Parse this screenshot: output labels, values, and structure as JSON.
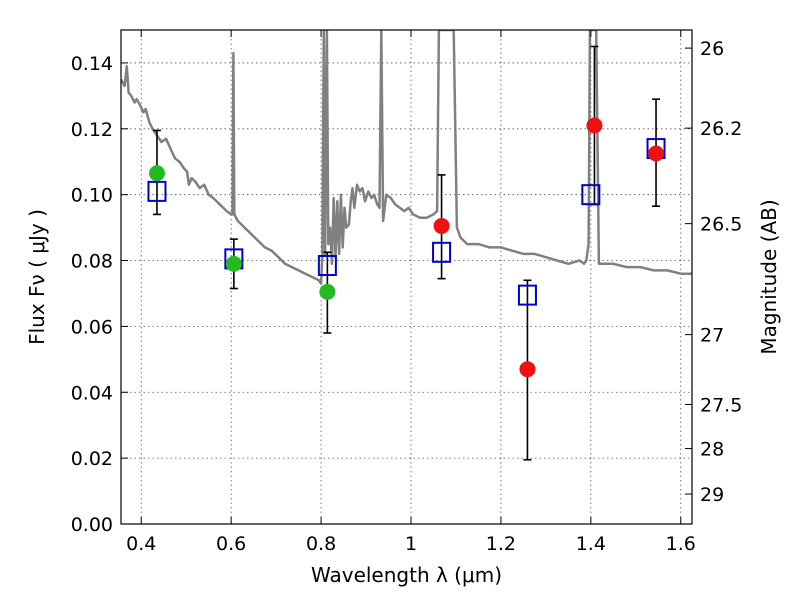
{
  "chart_data": {
    "type": "scatter",
    "xlabel": "Wavelength  λ (μm)",
    "ylabel": "Flux  Fν  ( μJy )",
    "y2label": "Magnitude (AB)",
    "xlim": [
      0.355,
      1.625
    ],
    "ylim": [
      0.0,
      0.15
    ],
    "grid": true,
    "colors": {
      "model": "#808080",
      "green": "#22bb22",
      "red": "#ee1111",
      "square": "#0000cc",
      "errorbar": "#000000"
    },
    "x_ticks": [
      {
        "value": 0.4,
        "label": "0.4"
      },
      {
        "value": 0.6,
        "label": "0.6"
      },
      {
        "value": 0.8,
        "label": "0.8"
      },
      {
        "value": 1.0,
        "label": "1"
      },
      {
        "value": 1.2,
        "label": "1.2"
      },
      {
        "value": 1.4,
        "label": "1.4"
      },
      {
        "value": 1.6,
        "label": "1.6"
      }
    ],
    "y_ticks": [
      {
        "value": 0.0,
        "label": "0.00"
      },
      {
        "value": 0.02,
        "label": "0.02"
      },
      {
        "value": 0.04,
        "label": "0.04"
      },
      {
        "value": 0.06,
        "label": "0.06"
      },
      {
        "value": 0.08,
        "label": "0.08"
      },
      {
        "value": 0.1,
        "label": "0.10"
      },
      {
        "value": 0.12,
        "label": "0.12"
      },
      {
        "value": 0.14,
        "label": "0.14"
      }
    ],
    "y2_ticks": [
      {
        "flux": 0.1445,
        "label": "26"
      },
      {
        "flux": 0.1202,
        "label": "26.2"
      },
      {
        "flux": 0.0912,
        "label": "26.5"
      },
      {
        "flux": 0.0575,
        "label": "27"
      },
      {
        "flux": 0.0363,
        "label": "27.5"
      },
      {
        "flux": 0.0229,
        "label": "28"
      },
      {
        "flux": 0.0091,
        "label": "29"
      }
    ],
    "model_spectrum": {
      "name": "",
      "points": [
        [
          0.355,
          0.135
        ],
        [
          0.363,
          0.133
        ],
        [
          0.368,
          0.139
        ],
        [
          0.372,
          0.131
        ],
        [
          0.378,
          0.13
        ],
        [
          0.385,
          0.128
        ],
        [
          0.39,
          0.129
        ],
        [
          0.398,
          0.127
        ],
        [
          0.405,
          0.125
        ],
        [
          0.41,
          0.126
        ],
        [
          0.418,
          0.122
        ],
        [
          0.425,
          0.12
        ],
        [
          0.435,
          0.118
        ],
        [
          0.445,
          0.116
        ],
        [
          0.455,
          0.117
        ],
        [
          0.465,
          0.114
        ],
        [
          0.475,
          0.111
        ],
        [
          0.485,
          0.11
        ],
        [
          0.495,
          0.108
        ],
        [
          0.502,
          0.107
        ],
        [
          0.506,
          0.103
        ],
        [
          0.512,
          0.105
        ],
        [
          0.52,
          0.104
        ],
        [
          0.53,
          0.102
        ],
        [
          0.54,
          0.103
        ],
        [
          0.55,
          0.1
        ],
        [
          0.56,
          0.099
        ],
        [
          0.575,
          0.097
        ],
        [
          0.59,
          0.095
        ],
        [
          0.6,
          0.094
        ],
        [
          0.603,
          0.094
        ],
        [
          0.605,
          0.143
        ],
        [
          0.607,
          0.094
        ],
        [
          0.615,
          0.092
        ],
        [
          0.63,
          0.09
        ],
        [
          0.645,
          0.088
        ],
        [
          0.66,
          0.086
        ],
        [
          0.675,
          0.084
        ],
        [
          0.69,
          0.083
        ],
        [
          0.705,
          0.081
        ],
        [
          0.72,
          0.079
        ],
        [
          0.735,
          0.078
        ],
        [
          0.75,
          0.077
        ],
        [
          0.765,
          0.076
        ],
        [
          0.78,
          0.075
        ],
        [
          0.795,
          0.074
        ],
        [
          0.8,
          0.073
        ],
        [
          0.803,
          0.082
        ],
        [
          0.806,
          0.15
        ],
        [
          0.809,
          0.082
        ],
        [
          0.813,
          0.15
        ],
        [
          0.816,
          0.085
        ],
        [
          0.82,
          0.09
        ],
        [
          0.824,
          0.079
        ],
        [
          0.828,
          0.099
        ],
        [
          0.832,
          0.081
        ],
        [
          0.836,
          0.098
        ],
        [
          0.84,
          0.082
        ],
        [
          0.844,
          0.1
        ],
        [
          0.848,
          0.084
        ],
        [
          0.852,
          0.096
        ],
        [
          0.856,
          0.09
        ],
        [
          0.862,
          0.091
        ],
        [
          0.866,
          0.098
        ],
        [
          0.87,
          0.102
        ],
        [
          0.874,
          0.096
        ],
        [
          0.88,
          0.103
        ],
        [
          0.886,
          0.101
        ],
        [
          0.892,
          0.102
        ],
        [
          0.898,
          0.098
        ],
        [
          0.905,
          0.101
        ],
        [
          0.912,
          0.099
        ],
        [
          0.918,
          0.1
        ],
        [
          0.925,
          0.097
        ],
        [
          0.93,
          0.096
        ],
        [
          0.934,
          0.15
        ],
        [
          0.938,
          0.092
        ],
        [
          0.945,
          0.1
        ],
        [
          0.955,
          0.099
        ],
        [
          0.965,
          0.097
        ],
        [
          0.975,
          0.096
        ],
        [
          0.985,
          0.095
        ],
        [
          0.995,
          0.096
        ],
        [
          1.005,
          0.094
        ],
        [
          1.02,
          0.093
        ],
        [
          1.035,
          0.093
        ],
        [
          1.05,
          0.094
        ],
        [
          1.058,
          0.095
        ],
        [
          1.062,
          0.15
        ],
        [
          1.095,
          0.15
        ],
        [
          1.102,
          0.09
        ],
        [
          1.11,
          0.087
        ],
        [
          1.125,
          0.085
        ],
        [
          1.15,
          0.085
        ],
        [
          1.175,
          0.084
        ],
        [
          1.2,
          0.084
        ],
        [
          1.225,
          0.083
        ],
        [
          1.25,
          0.082
        ],
        [
          1.275,
          0.082
        ],
        [
          1.3,
          0.081
        ],
        [
          1.325,
          0.08
        ],
        [
          1.35,
          0.079
        ],
        [
          1.375,
          0.08
        ],
        [
          1.385,
          0.079
        ],
        [
          1.39,
          0.08
        ],
        [
          1.395,
          0.085
        ],
        [
          1.398,
          0.15
        ],
        [
          1.412,
          0.15
        ],
        [
          1.418,
          0.079
        ],
        [
          1.45,
          0.079
        ],
        [
          1.48,
          0.078
        ],
        [
          1.51,
          0.078
        ],
        [
          1.54,
          0.077
        ],
        [
          1.57,
          0.077
        ],
        [
          1.6,
          0.076
        ],
        [
          1.625,
          0.076
        ]
      ]
    },
    "green_points": [
      {
        "x": 0.435,
        "y": 0.1065,
        "yerr": [
          0.094,
          0.1195
        ]
      },
      {
        "x": 0.606,
        "y": 0.079,
        "yerr": [
          0.0715,
          0.0865
        ]
      },
      {
        "x": 0.814,
        "y": 0.0705,
        "yerr": [
          0.058,
          0.0825
        ]
      }
    ],
    "red_points": [
      {
        "x": 1.068,
        "y": 0.0905,
        "yerr": [
          0.0745,
          0.106
        ]
      },
      {
        "x": 1.259,
        "y": 0.047,
        "yerr": [
          0.0195,
          0.074
        ]
      },
      {
        "x": 1.408,
        "y": 0.121,
        "yerr": [
          0.097,
          0.145
        ]
      },
      {
        "x": 1.545,
        "y": 0.1125,
        "yerr": [
          0.0965,
          0.129
        ]
      }
    ],
    "model_squares": [
      {
        "x": 0.435,
        "y": 0.101
      },
      {
        "x": 0.606,
        "y": 0.0805
      },
      {
        "x": 0.814,
        "y": 0.0785
      },
      {
        "x": 1.068,
        "y": 0.0825
      },
      {
        "x": 1.259,
        "y": 0.0695
      },
      {
        "x": 1.4,
        "y": 0.1
      },
      {
        "x": 1.545,
        "y": 0.114
      }
    ]
  }
}
